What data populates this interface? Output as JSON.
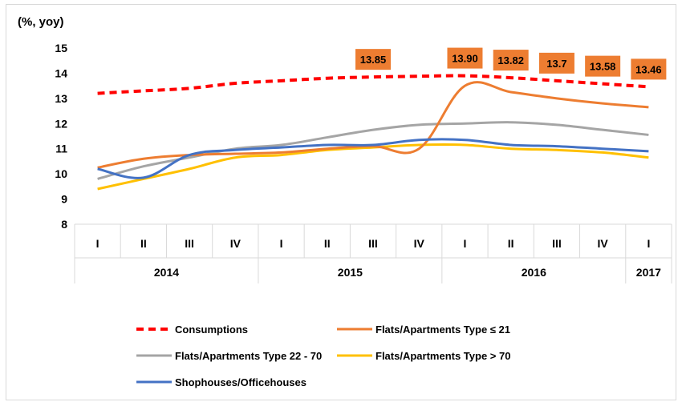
{
  "chart_data": {
    "type": "line",
    "y_unit_label": "(%, yoy)",
    "ylim": [
      8,
      15
    ],
    "yticks": [
      "8",
      "9",
      "10",
      "11",
      "12",
      "13",
      "14",
      "15"
    ],
    "quarters": [
      "I",
      "II",
      "III",
      "IV",
      "I",
      "II",
      "III",
      "IV",
      "I",
      "II",
      "III",
      "IV",
      "I"
    ],
    "years": [
      {
        "label": "2014",
        "span": 4
      },
      {
        "label": "2015",
        "span": 4
      },
      {
        "label": "2016",
        "span": 4
      },
      {
        "label": "2017",
        "span": 1
      }
    ],
    "series": [
      {
        "key": "consumptions",
        "name": "Consumptions",
        "color": "#ff0000",
        "dashed": true,
        "values": [
          13.2,
          13.3,
          13.4,
          13.6,
          13.7,
          13.8,
          13.85,
          13.88,
          13.9,
          13.82,
          13.7,
          13.58,
          13.46
        ]
      },
      {
        "key": "flats_le21",
        "name": "Flats/Apartments Type ≤ 21",
        "color": "#ed7d31",
        "dashed": false,
        "values": [
          10.25,
          10.6,
          10.75,
          10.8,
          10.85,
          11.0,
          11.1,
          11.0,
          13.5,
          13.25,
          13.0,
          12.8,
          12.65
        ]
      },
      {
        "key": "flats_22_70",
        "name": "Flats/Apartments Type 22 - 70",
        "color": "#a5a5a5",
        "dashed": false,
        "values": [
          9.8,
          10.3,
          10.65,
          11.0,
          11.15,
          11.45,
          11.75,
          11.95,
          12.0,
          12.05,
          11.95,
          11.75,
          11.55
        ]
      },
      {
        "key": "flats_gt70",
        "name": "Flats/Apartments Type > 70",
        "color": "#ffc000",
        "dashed": false,
        "values": [
          9.4,
          9.8,
          10.2,
          10.65,
          10.75,
          10.95,
          11.05,
          11.15,
          11.15,
          11.0,
          10.95,
          10.85,
          10.65
        ]
      },
      {
        "key": "shophouses",
        "name": "Shophouses/Officehouses",
        "color": "#4472c4",
        "dashed": false,
        "values": [
          10.2,
          9.85,
          10.75,
          10.95,
          11.05,
          11.15,
          11.15,
          11.35,
          11.35,
          11.15,
          11.1,
          11.0,
          10.9
        ]
      }
    ],
    "data_labels": [
      {
        "index": 6,
        "text": "13.85"
      },
      {
        "index": 8,
        "text": "13.90"
      },
      {
        "index": 9,
        "text": "13.82"
      },
      {
        "index": 10,
        "text": "13.7"
      },
      {
        "index": 11,
        "text": "13.58"
      },
      {
        "index": 12,
        "text": "13.46"
      }
    ],
    "label_color": "#ed7d31",
    "legend_position": "bottom"
  }
}
